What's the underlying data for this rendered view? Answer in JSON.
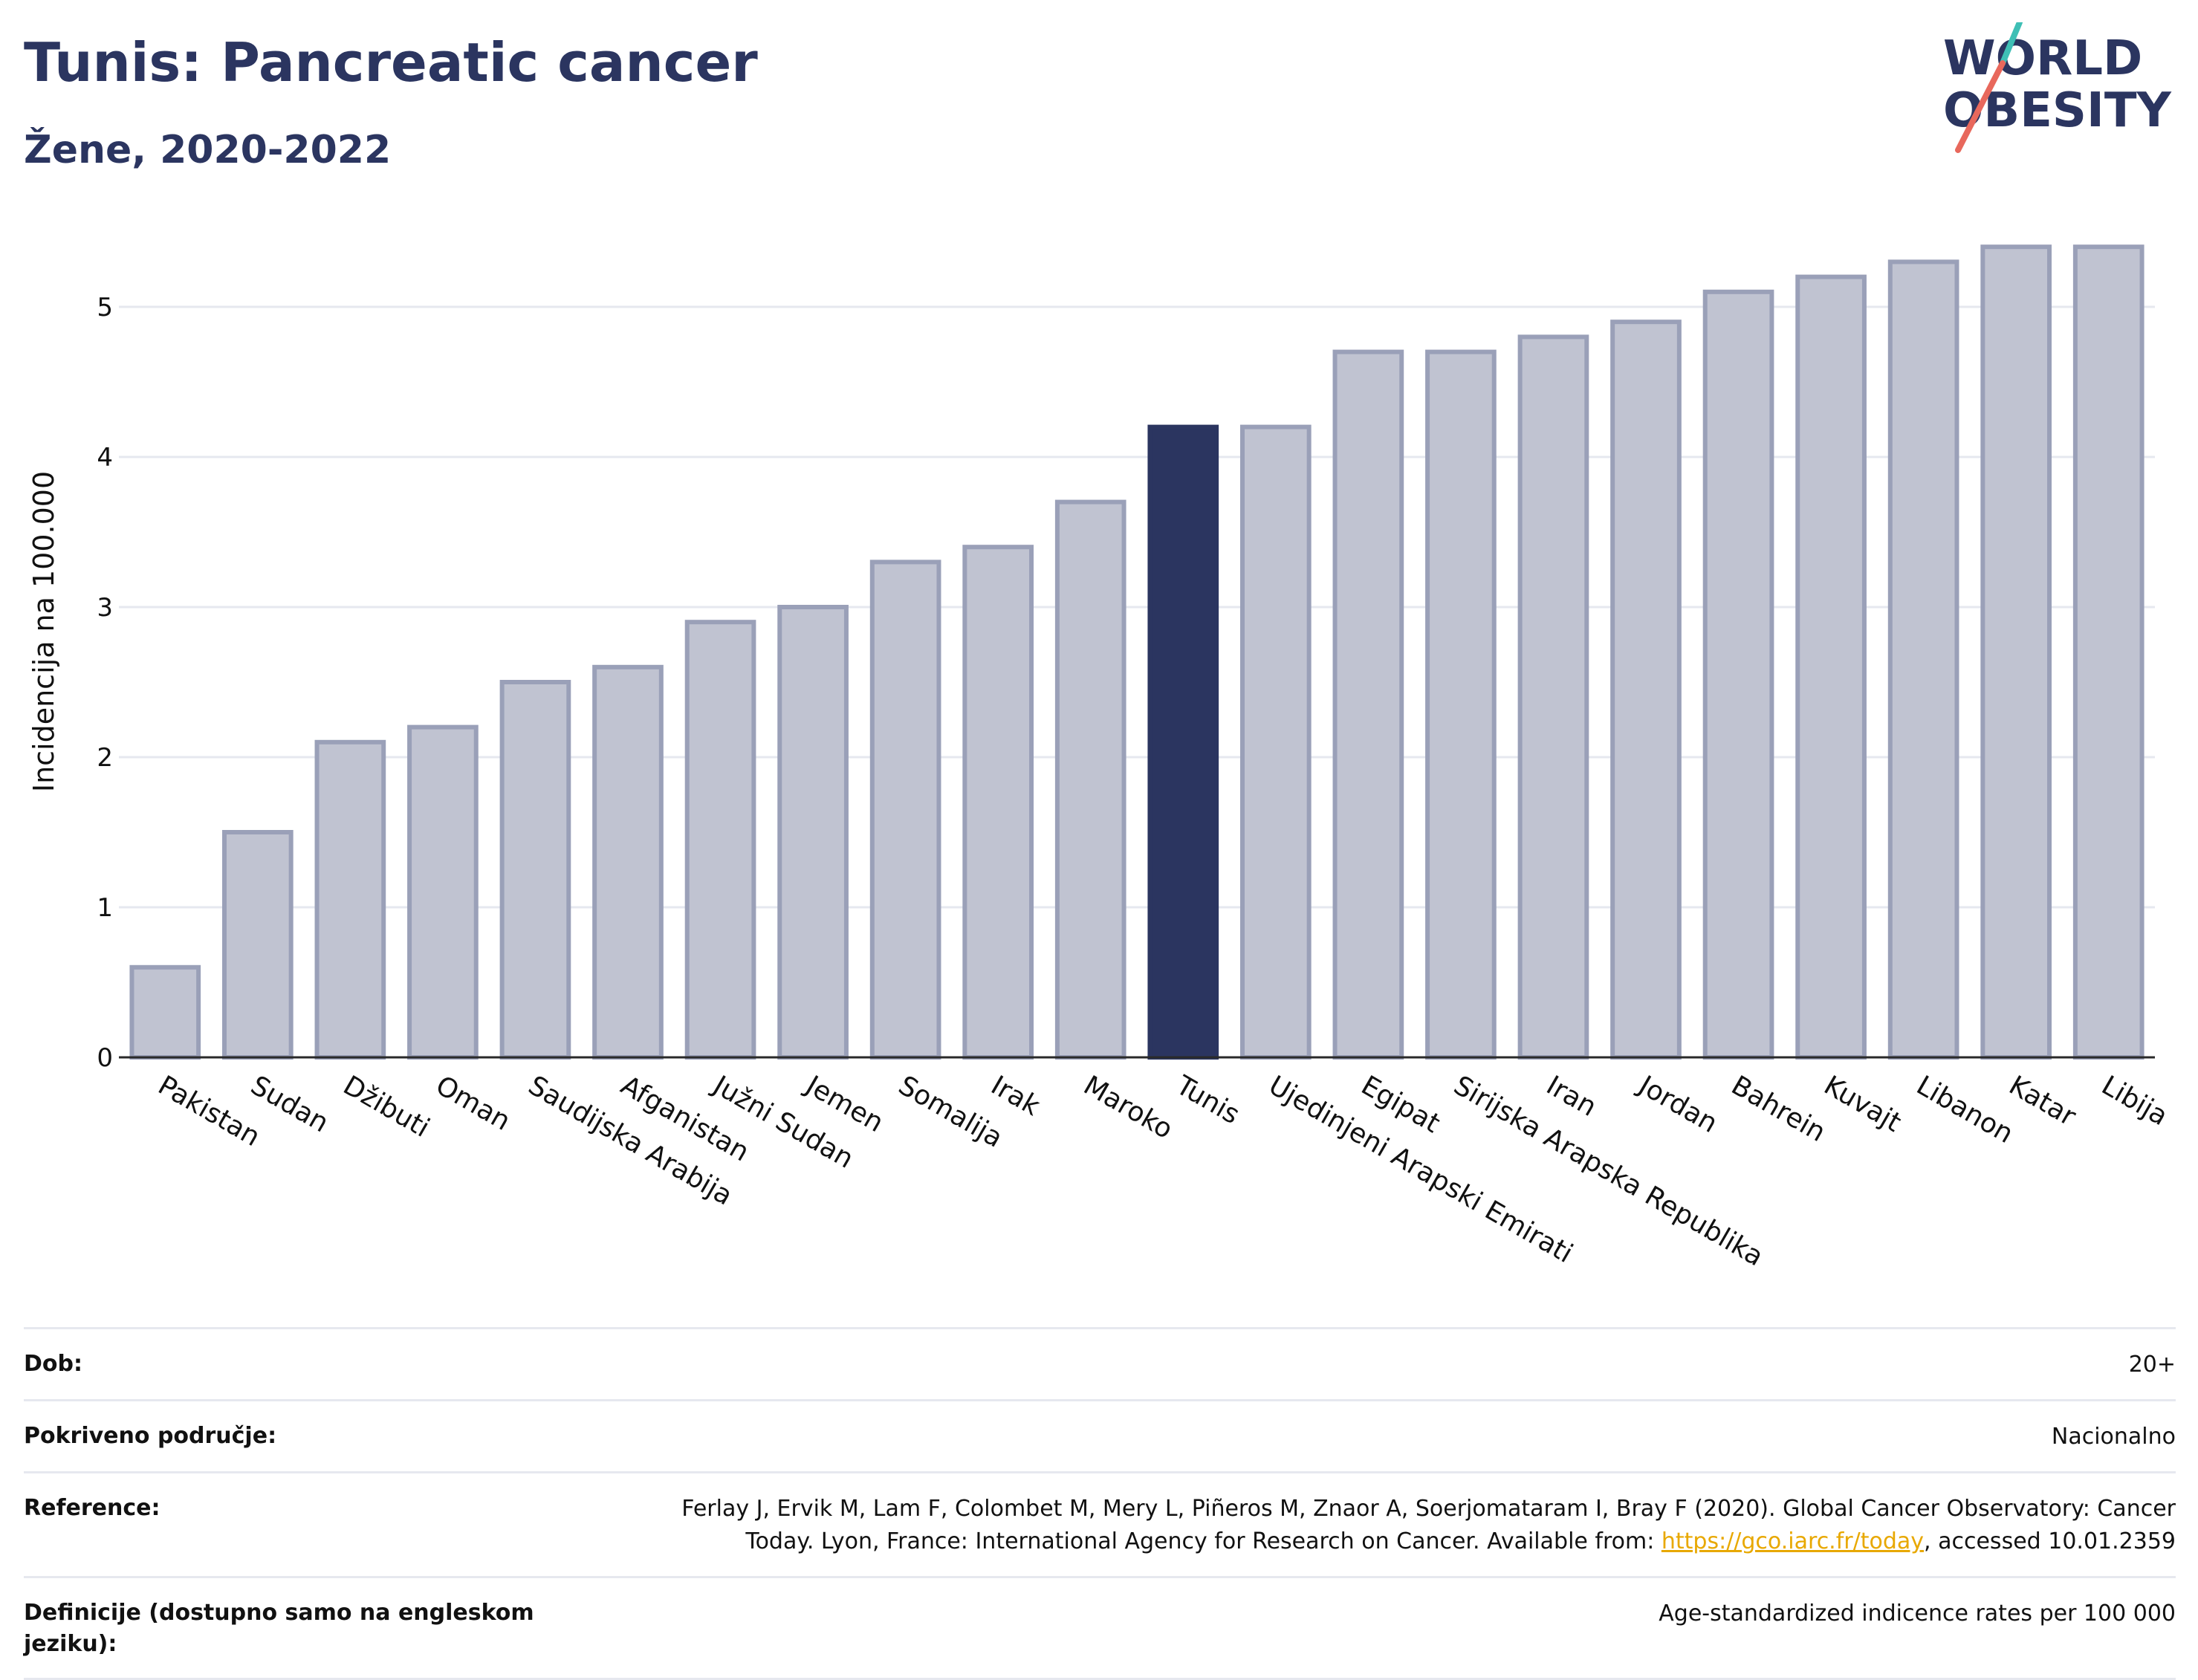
{
  "header": {
    "title": "Tunis: Pancreatic cancer",
    "subtitle": "Žene, 2020-2022",
    "logo_line1": "WORLD",
    "logo_line2": "OBESITY"
  },
  "colors": {
    "highlight_bar": "#2b3560",
    "other_bar_fill": "#c0c3d1",
    "other_bar_stroke": "#9aa0b8",
    "text_dark": "#2b3560",
    "logo_teal": "#3fbfb5",
    "logo_coral": "#e8685c",
    "link": "#e8a800"
  },
  "chart_data": {
    "type": "bar",
    "title": "Tunis: Pancreatic cancer",
    "subtitle": "Žene, 2020-2022",
    "xlabel": "",
    "ylabel": "Incidencija na 100.000",
    "ylim": [
      0,
      5.6
    ],
    "yticks": [
      0,
      1,
      2,
      3,
      4,
      5
    ],
    "grid": true,
    "highlight": "Tunis",
    "categories": [
      "Pakistan",
      "Sudan",
      "Džibuti",
      "Oman",
      "Saudijska Arabija",
      "Afganistan",
      "Južni Sudan",
      "Jemen",
      "Somalija",
      "Irak",
      "Maroko",
      "Tunis",
      "Ujedinjeni Arapski Emirati",
      "Egipat",
      "Sirijska Arapska Republika",
      "Iran",
      "Jordan",
      "Bahrein",
      "Kuvajt",
      "Libanon",
      "Katar",
      "Libija"
    ],
    "values": [
      0.6,
      1.5,
      2.1,
      2.2,
      2.5,
      2.6,
      2.9,
      3.0,
      3.3,
      3.4,
      3.7,
      4.2,
      4.2,
      4.7,
      4.7,
      4.8,
      4.9,
      5.1,
      5.2,
      5.3,
      5.4,
      5.4
    ]
  },
  "meta": {
    "rows": [
      {
        "label": "Dob:",
        "value": "20+"
      },
      {
        "label": "Pokriveno područje:",
        "value": "Nacionalno"
      },
      {
        "label": "Reference:",
        "value_line1": "Ferlay J, Ervik M, Lam F, Colombet M, Mery L, Piñeros M, Znaor A, Soerjomataram I, Bray F (2020). Global Cancer Observatory: Cancer",
        "value_line2_pre": "Today. Lyon, France: International Agency for Research on Cancer. Available from: ",
        "link_text": "https://gco.iarc.fr/today",
        "value_line2_post": ", accessed 10.01.2359"
      },
      {
        "label": "Definicije (dostupno samo na engleskom jeziku):",
        "value": "Age-standardized indicence rates per 100 000"
      }
    ]
  }
}
